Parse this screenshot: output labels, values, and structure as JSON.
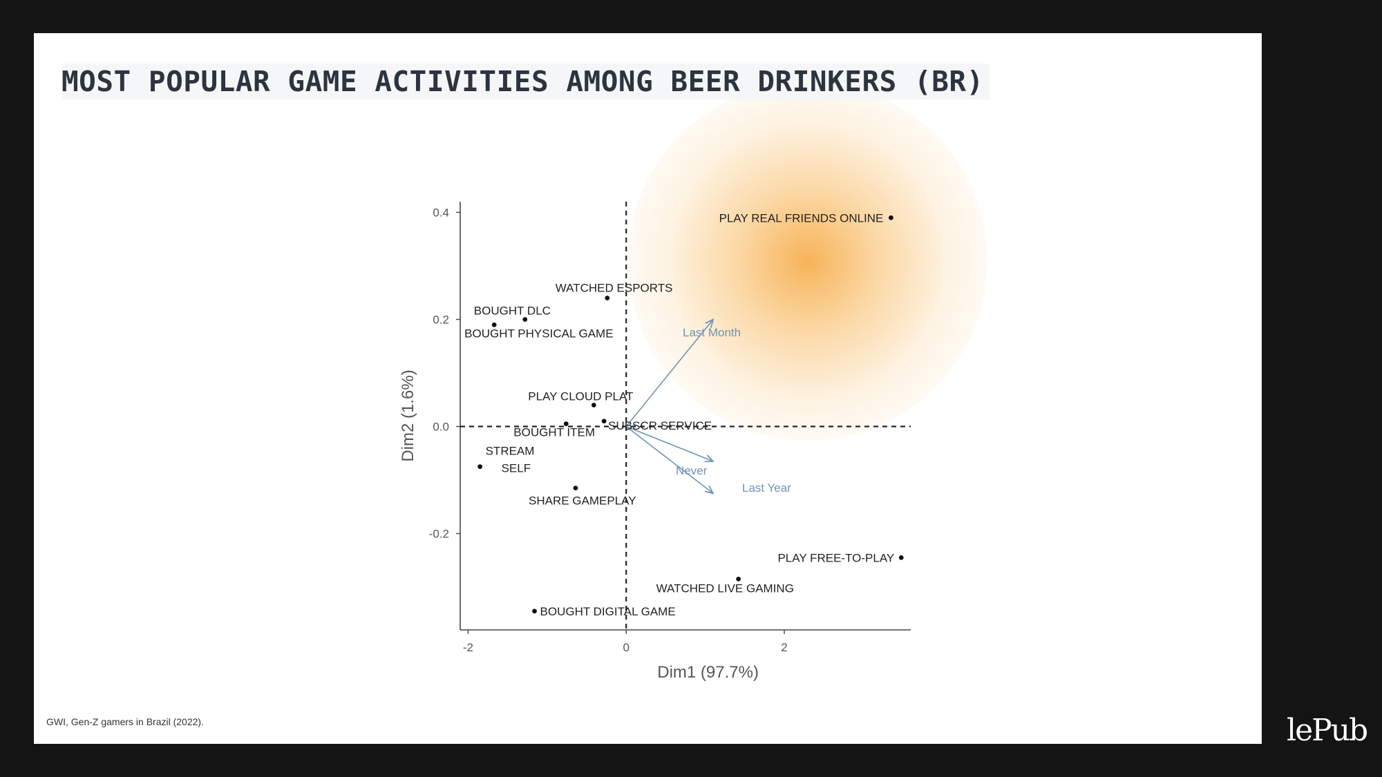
{
  "title": "MOST POPULAR GAME ACTIVITIES AMONG BEER DRINKERS (BR)",
  "source": "GWI, Gen-Z gamers in Brazil (2022).",
  "logo_text": "lePub",
  "colors": {
    "highlight": "#f6a63c",
    "arrow": "#6f93b5",
    "background": "#141414"
  },
  "chart_data": {
    "type": "scatter",
    "xlabel": "Dim1 (97.7%)",
    "ylabel": "Dim2 (1.6%)",
    "xlim": [
      -2.1,
      3.6
    ],
    "ylim": [
      -0.38,
      0.42
    ],
    "xticks": [
      -2,
      0,
      2
    ],
    "yticks": [
      0.4,
      0.2,
      0.0,
      -0.2
    ],
    "tick_labels_x": [
      "-2",
      "0",
      "2"
    ],
    "tick_labels_y": [
      "0.4",
      "0.2",
      "0.0",
      "-0.2"
    ],
    "reference_lines": {
      "x": 0,
      "y": 0,
      "style": "dashed"
    },
    "points": [
      {
        "label": "PLAY REAL FRIENDS ONLINE",
        "x": 3.35,
        "y": 0.39,
        "label_side": "left"
      },
      {
        "label": "WATCHED ESPORTS",
        "x": -0.24,
        "y": 0.24,
        "label_side": "above"
      },
      {
        "label": "BOUGHT DLC",
        "x": -1.28,
        "y": 0.2,
        "label_side": "above-left"
      },
      {
        "label": "BOUGHT PHYSICAL GAME",
        "x": -1.67,
        "y": 0.19,
        "label_side": "below"
      },
      {
        "label": "PLAY CLOUD PLAT",
        "x": -0.41,
        "y": 0.04,
        "label_side": "above"
      },
      {
        "label": "SUBSCR SERVICE",
        "x": -0.28,
        "y": 0.01,
        "label_side": "below-right"
      },
      {
        "label": "BOUGHT ITEM",
        "x": -0.76,
        "y": 0.005,
        "label_side": "below"
      },
      {
        "label": "STREAM",
        "x": -1.85,
        "y": -0.075,
        "label_side": "above-right"
      },
      {
        "label": "SELF",
        "x": -1.85,
        "y": -0.075,
        "label_side": "right"
      },
      {
        "label": "SHARE GAMEPLAY",
        "x": -0.64,
        "y": -0.115,
        "label_side": "below"
      },
      {
        "label": "PLAY FREE-TO-PLAY",
        "x": 3.48,
        "y": -0.245,
        "label_side": "left"
      },
      {
        "label": "WATCHED LIVE GAMING",
        "x": 1.42,
        "y": -0.285,
        "label_side": "below"
      },
      {
        "label": "BOUGHT DIGITAL GAME",
        "x": -1.16,
        "y": -0.345,
        "label_side": "right"
      }
    ],
    "arrows": [
      {
        "label": "Last Month",
        "x": 1.1,
        "y": 0.2
      },
      {
        "label": "Never",
        "x": 1.1,
        "y": -0.065
      },
      {
        "label": "Last Year",
        "x": 1.1,
        "y": -0.125
      }
    ],
    "highlighted_point": "PLAY REAL FRIENDS ONLINE"
  }
}
